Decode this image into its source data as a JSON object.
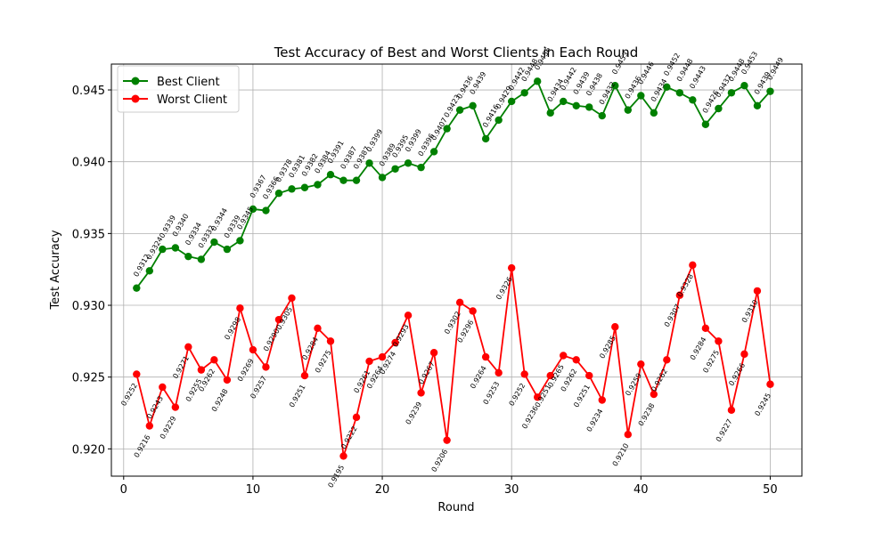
{
  "chart_data": {
    "type": "line",
    "title": "Test Accuracy of Best and Worst Clients in Each Round",
    "xlabel": "Round",
    "ylabel": "Test Accuracy",
    "xlim": [
      -0.95,
      52.45
    ],
    "ylim": [
      0.9181,
      0.9468
    ],
    "xticks": [
      0,
      10,
      20,
      30,
      40,
      50
    ],
    "xtick_labels": [
      "0",
      "10",
      "20",
      "30",
      "40",
      "50"
    ],
    "yticks": [
      0.92,
      0.925,
      0.93,
      0.935,
      0.94,
      0.945
    ],
    "ytick_labels": [
      "0.920",
      "0.925",
      "0.930",
      "0.935",
      "0.940",
      "0.945"
    ],
    "grid": true,
    "legend_position": "top-left",
    "x": [
      1,
      2,
      3,
      4,
      5,
      6,
      7,
      8,
      9,
      10,
      11,
      12,
      13,
      14,
      15,
      16,
      17,
      18,
      19,
      20,
      21,
      22,
      23,
      24,
      25,
      26,
      27,
      28,
      29,
      30,
      31,
      32,
      33,
      34,
      35,
      36,
      37,
      38,
      39,
      40,
      41,
      42,
      43,
      44,
      45,
      46,
      47,
      48,
      49,
      50
    ],
    "series": [
      {
        "name": "Best Client",
        "color": "#008000",
        "label_position": "above",
        "values": [
          0.9312,
          0.9324,
          0.9339,
          0.934,
          0.9334,
          0.9332,
          0.9344,
          0.9339,
          0.9345,
          0.9367,
          0.9366,
          0.9378,
          0.9381,
          0.9382,
          0.9384,
          0.9391,
          0.9387,
          0.9387,
          0.9399,
          0.9389,
          0.9395,
          0.9399,
          0.9396,
          0.9407,
          0.9423,
          0.9436,
          0.9439,
          0.9416,
          0.9429,
          0.9442,
          0.9448,
          0.9456,
          0.9434,
          0.9442,
          0.9439,
          0.9438,
          0.9432,
          0.9453,
          0.9436,
          0.9446,
          0.9434,
          0.9452,
          0.9448,
          0.9443,
          0.9426,
          0.9437,
          0.9448,
          0.9453,
          0.9439,
          0.9449
        ],
        "labels": [
          "0.9312",
          "0.9324",
          "0.9339",
          "0.9340",
          "0.9334",
          "0.9332",
          "0.9344",
          "0.9339",
          "0.9345",
          "0.9367",
          "0.9366",
          "0.9378",
          "0.9381",
          "0.9382",
          "0.9384",
          "0.9391",
          "0.9387",
          "0.9387",
          "0.9399",
          "0.9389",
          "0.9395",
          "0.9399",
          "0.9396",
          "0.9407",
          "0.9423",
          "0.9436",
          "0.9439",
          "0.9416",
          "0.9429",
          "0.9442",
          "0.9448",
          "0.9456",
          "0.9434",
          "0.9442",
          "0.9439",
          "0.9438",
          "0.9432",
          "0.9453",
          "0.9436",
          "0.9446",
          "0.9434",
          "0.9452",
          "0.9448",
          "0.9443",
          "0.9426",
          "0.9437",
          "0.9448",
          "0.9453",
          "0.9439",
          "0.9449"
        ]
      },
      {
        "name": "Worst Client",
        "color": "#ff0000",
        "label_position": "below",
        "values": [
          0.9252,
          0.9216,
          0.9243,
          0.9229,
          0.9271,
          0.9255,
          0.9262,
          0.9248,
          0.9298,
          0.9269,
          0.9257,
          0.929,
          0.9305,
          0.9251,
          0.9284,
          0.9275,
          0.9195,
          0.9222,
          0.9261,
          0.9264,
          0.9274,
          0.9293,
          0.9239,
          0.9267,
          0.9206,
          0.9302,
          0.9296,
          0.9264,
          0.9253,
          0.9326,
          0.9252,
          0.9236,
          0.9251,
          0.9265,
          0.9262,
          0.9251,
          0.9234,
          0.9285,
          0.921,
          0.9259,
          0.9238,
          0.9262,
          0.9307,
          0.9328,
          0.9284,
          0.9275,
          0.9227,
          0.9266,
          0.931,
          0.9245
        ],
        "labels": [
          "0.9252",
          "0.9216",
          "0.9243",
          "0.9229",
          "0.9271",
          "0.9255",
          "0.9262",
          "0.9248",
          "0.9298",
          "0.9269",
          "0.9257",
          "0.9290",
          "0.9305",
          "0.9251",
          "0.9284",
          "0.9275",
          "0.9195",
          "0.9222",
          "0.9261",
          "0.9264",
          "0.9274",
          "0.9293",
          "0.9239",
          "0.9267",
          "0.9206",
          "0.9302",
          "0.9296",
          "0.9264",
          "0.9253",
          "0.9326",
          "0.9252",
          "0.9236",
          "0.9251",
          "0.9265",
          "0.9262",
          "0.9251",
          "0.9234",
          "0.9285",
          "0.9210",
          "0.9259",
          "0.9238",
          "0.9262",
          "0.9307",
          "0.9328",
          "0.9284",
          "0.9275",
          "0.9227",
          "0.9266",
          "0.9310",
          "0.9245"
        ]
      }
    ]
  }
}
